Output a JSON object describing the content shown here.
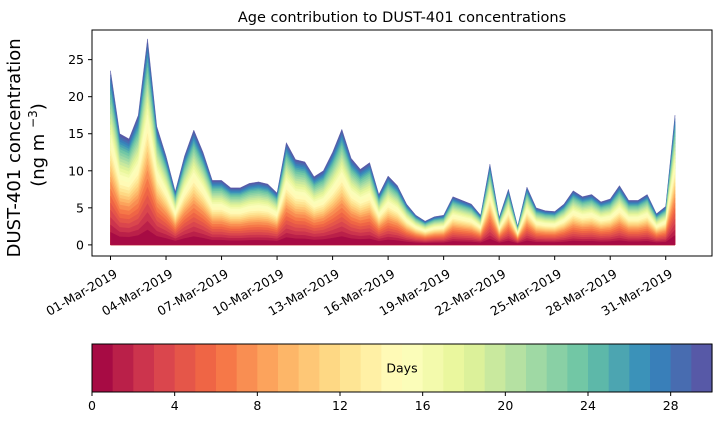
{
  "chart_data": {
    "type": "area",
    "stacked": true,
    "title": "Age contribution to DUST-401 concentrations",
    "ylabel": "DUST-401 concentration",
    "ylabel_unit": "(ng m",
    "ylabel_unit_sup": "−3",
    "ylabel_unit_close": ")",
    "ylim": [
      -1.5,
      29
    ],
    "yticks": [
      0,
      5,
      10,
      15,
      20,
      25
    ],
    "xlim": [
      -1.0,
      32.5
    ],
    "xtick_positions": [
      0,
      3,
      6,
      9,
      12,
      15,
      18,
      21,
      24,
      27,
      30
    ],
    "xtick_labels": [
      "01-Mar-2019",
      "04-Mar-2019",
      "07-Mar-2019",
      "10-Mar-2019",
      "13-Mar-2019",
      "16-Mar-2019",
      "19-Mar-2019",
      "22-Mar-2019",
      "25-Mar-2019",
      "28-Mar-2019",
      "31-Mar-2019"
    ],
    "x": [
      0,
      0.5,
      1,
      1.5,
      2,
      2.5,
      3,
      3.5,
      4,
      4.5,
      5,
      5.5,
      6,
      6.5,
      7,
      7.5,
      8,
      8.5,
      9,
      9.5,
      10,
      10.5,
      11,
      11.5,
      12,
      12.5,
      13,
      13.5,
      14,
      14.5,
      15,
      15.5,
      16,
      16.5,
      17,
      17.5,
      18,
      18.5,
      19,
      19.5,
      20,
      20.5,
      21,
      21.5,
      22,
      22.5,
      23,
      23.5,
      24,
      24.5,
      25,
      25.5,
      26,
      26.5,
      27,
      27.5,
      28,
      28.5,
      29,
      29.5,
      30,
      30.5,
      31,
      31.5
    ],
    "total": [
      23.5,
      15,
      14.3,
      17.5,
      27.8,
      16,
      12,
      7.2,
      12,
      15.5,
      12.5,
      8.7,
      8.7,
      7.7,
      7.7,
      8.3,
      8.5,
      8.2,
      7,
      13.8,
      11.5,
      11.2,
      9.2,
      10,
      12.5,
      15.6,
      11.7,
      10.2,
      11.1,
      6.8,
      9.3,
      8,
      5.5,
      4,
      3.2,
      3.8,
      4,
      6.5,
      6,
      5.5,
      4,
      10.9,
      3.7,
      7.5,
      2.5,
      7.8,
      5,
      4.6,
      4.5,
      5.5,
      7.3,
      6.5,
      6.8,
      5.8,
      6.2,
      8,
      6,
      6,
      6.8,
      4.2,
      5.2,
      17.5,
      null,
      null
    ],
    "layer_fraction_anchors": [
      [
        0,
        0.03
      ],
      [
        4,
        0.2
      ],
      [
        8,
        0.36
      ],
      [
        12,
        0.48
      ],
      [
        14,
        0.54
      ],
      [
        16,
        0.63
      ],
      [
        20,
        0.75
      ],
      [
        24,
        0.86
      ],
      [
        28,
        0.95
      ],
      [
        30,
        1.0
      ]
    ],
    "age_bins": 30,
    "colormap": [
      "#9e0142",
      "#d53e4f",
      "#f46d43",
      "#fdae61",
      "#fee08b",
      "#ffffbf",
      "#e6f598",
      "#abdda4",
      "#66c2a5",
      "#3288bd",
      "#5e4fa2"
    ],
    "colorbar": {
      "label": "Days",
      "min": 0,
      "max": 30,
      "ticks": [
        0,
        4,
        8,
        12,
        16,
        20,
        24,
        28
      ],
      "bins": 30
    },
    "grid": false,
    "legend": "none"
  }
}
